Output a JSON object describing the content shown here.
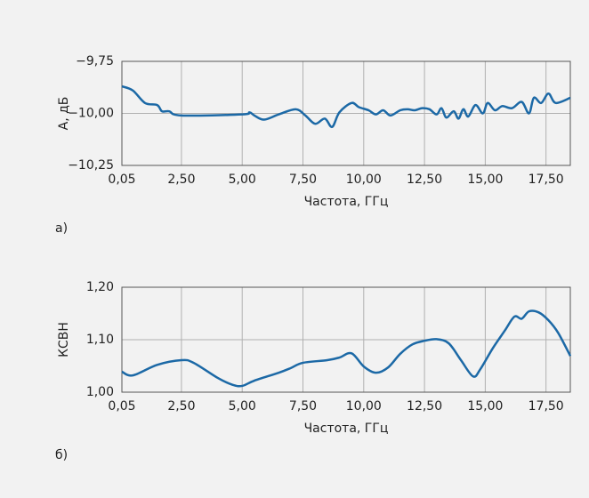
{
  "chart_data": [
    {
      "type": "line",
      "panel_label": "а)",
      "xlabel": "Частота, ГГц",
      "ylabel": "A, дБ",
      "grid": true,
      "xlim": [
        0.05,
        18.5
      ],
      "ylim": [
        -10.25,
        -9.75
      ],
      "xticks": [
        {
          "value": 0.05,
          "label": "0,05"
        },
        {
          "value": 2.5,
          "label": "2,50"
        },
        {
          "value": 5,
          "label": "5,00"
        },
        {
          "value": 7.5,
          "label": "7,50"
        },
        {
          "value": 10,
          "label": "10,00"
        },
        {
          "value": 12.5,
          "label": "12,50"
        },
        {
          "value": 15,
          "label": "15,00"
        },
        {
          "value": 17.5,
          "label": "17,50"
        }
      ],
      "yticks": [
        {
          "value": -10.25,
          "label": "−10,25"
        },
        {
          "value": -10,
          "label": "−10,00"
        },
        {
          "value": -9.75,
          "label": "−9,75"
        }
      ],
      "series": [
        {
          "color": "#1c69a6",
          "x": [
            0.05,
            0.5,
            1.0,
            1.5,
            1.7,
            2.0,
            2.5,
            5.0,
            5.3,
            5.5,
            5.9,
            6.5,
            7.2,
            7.6,
            8.0,
            8.4,
            8.7,
            9.0,
            9.5,
            9.8,
            10.2,
            10.5,
            10.8,
            11.1,
            11.5,
            11.8,
            12.1,
            12.4,
            12.7,
            13.0,
            13.2,
            13.4,
            13.7,
            13.9,
            14.1,
            14.3,
            14.6,
            14.9,
            15.1,
            15.4,
            15.7,
            16.1,
            16.5,
            16.8,
            17.0,
            17.3,
            17.6,
            17.9,
            18.5
          ],
          "values": [
            -9.87,
            -9.89,
            -9.95,
            -9.96,
            -9.99,
            -9.99,
            -10.01,
            -10.005,
            -9.995,
            -10.01,
            -10.03,
            -10.005,
            -9.98,
            -10.01,
            -10.05,
            -10.025,
            -10.065,
            -9.995,
            -9.95,
            -9.97,
            -9.985,
            -10.005,
            -9.985,
            -10.01,
            -9.985,
            -9.98,
            -9.985,
            -9.975,
            -9.98,
            -10.005,
            -9.975,
            -10.02,
            -9.99,
            -10.025,
            -9.98,
            -10.015,
            -9.96,
            -10.0,
            -9.95,
            -9.985,
            -9.965,
            -9.975,
            -9.945,
            -10.0,
            -9.925,
            -9.95,
            -9.905,
            -9.95,
            -9.925
          ]
        }
      ]
    },
    {
      "type": "line",
      "panel_label": "б)",
      "xlabel": "Частота, ГГц",
      "ylabel": "КСВН",
      "grid": true,
      "xlim": [
        0.05,
        18.5
      ],
      "ylim": [
        1.0,
        1.2
      ],
      "xticks": [
        {
          "value": 0.05,
          "label": "0,05"
        },
        {
          "value": 2.5,
          "label": "2,50"
        },
        {
          "value": 5,
          "label": "5,00"
        },
        {
          "value": 7.5,
          "label": "7,50"
        },
        {
          "value": 10,
          "label": "10,00"
        },
        {
          "value": 12.5,
          "label": "12,50"
        },
        {
          "value": 15,
          "label": "15,00"
        },
        {
          "value": 17.5,
          "label": "17,50"
        }
      ],
      "yticks": [
        {
          "value": 1.0,
          "label": "1,00"
        },
        {
          "value": 1.1,
          "label": "1,10"
        },
        {
          "value": 1.2,
          "label": "1,20"
        }
      ],
      "series": [
        {
          "color": "#1c69a6",
          "x": [
            0.05,
            0.5,
            1.5,
            2.5,
            3.0,
            4.0,
            4.6,
            5.0,
            5.5,
            6.5,
            7.0,
            7.5,
            8.5,
            9.0,
            9.5,
            10.0,
            10.5,
            11.0,
            11.5,
            12.0,
            12.5,
            13.0,
            13.5,
            14.0,
            14.5,
            14.8,
            15.3,
            15.8,
            16.2,
            16.5,
            16.8,
            17.2,
            17.6,
            18.0,
            18.5
          ],
          "values": [
            1.039,
            1.032,
            1.052,
            1.061,
            1.056,
            1.027,
            1.014,
            1.012,
            1.022,
            1.037,
            1.046,
            1.056,
            1.061,
            1.066,
            1.074,
            1.049,
            1.037,
            1.047,
            1.073,
            1.091,
            1.098,
            1.101,
            1.093,
            1.061,
            1.03,
            1.044,
            1.083,
            1.117,
            1.144,
            1.14,
            1.154,
            1.152,
            1.137,
            1.113,
            1.069
          ]
        }
      ]
    }
  ]
}
